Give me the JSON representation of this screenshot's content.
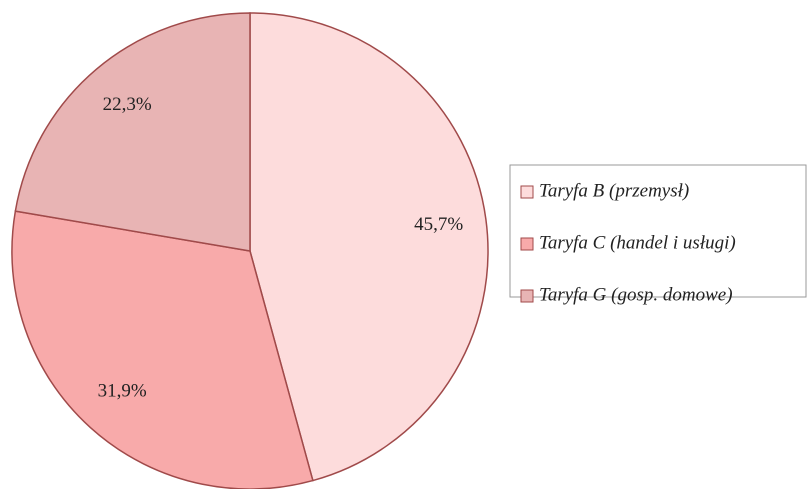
{
  "chart_data": {
    "type": "pie",
    "categories": [
      "Taryfa B (przemysł)",
      "Taryfa C (handel i usługi)",
      "Taryfa G (gosp. domowe)"
    ],
    "values": [
      45.7,
      31.9,
      22.3
    ],
    "value_labels": [
      "45,7%",
      "31,9%",
      "22,3%"
    ],
    "colors": [
      "#fddcdc",
      "#f8aaaa",
      "#e8b4b4"
    ],
    "legend": "right"
  }
}
